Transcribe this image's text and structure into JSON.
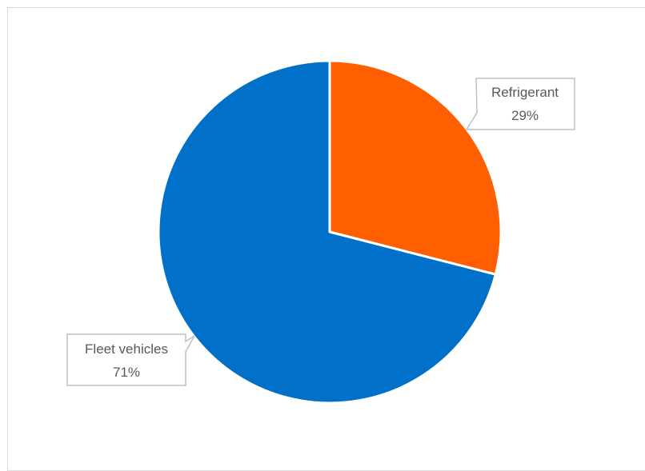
{
  "chart_data": {
    "type": "pie",
    "slices": [
      {
        "label": "Refrigerant",
        "value": 29,
        "value_label": "29%",
        "color": "#FF5F00"
      },
      {
        "label": "Fleet vehicles",
        "value": 71,
        "value_label": "71%",
        "color": "#0070C8"
      }
    ],
    "start_angle_deg": 0,
    "legend": "none",
    "data_labels": "callouts"
  }
}
